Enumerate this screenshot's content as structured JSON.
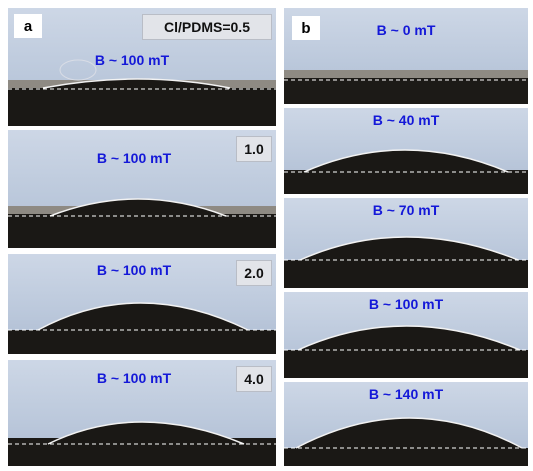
{
  "panels": {
    "a": {
      "letter": "a",
      "header": "Cl/PDMS=0.5",
      "items": [
        {
          "field": "B ~ 100 mT",
          "tag": ""
        },
        {
          "field": "B ~ 100 mT",
          "tag": "1.0"
        },
        {
          "field": "B ~ 100 mT",
          "tag": "2.0"
        },
        {
          "field": "B ~ 100 mT",
          "tag": "4.0"
        }
      ]
    },
    "b": {
      "letter": "b",
      "items": [
        {
          "field": "B ~ 0 mT"
        },
        {
          "field": "B ~ 40 mT"
        },
        {
          "field": "B ~ 70 mT"
        },
        {
          "field": "B ~ 100 mT"
        },
        {
          "field": "B ~ 140 mT"
        }
      ]
    }
  },
  "colors": {
    "label": "#1418d8",
    "background": "#c4cfe0",
    "substrate": "#1c1a17",
    "baseline": "#ffffff"
  }
}
